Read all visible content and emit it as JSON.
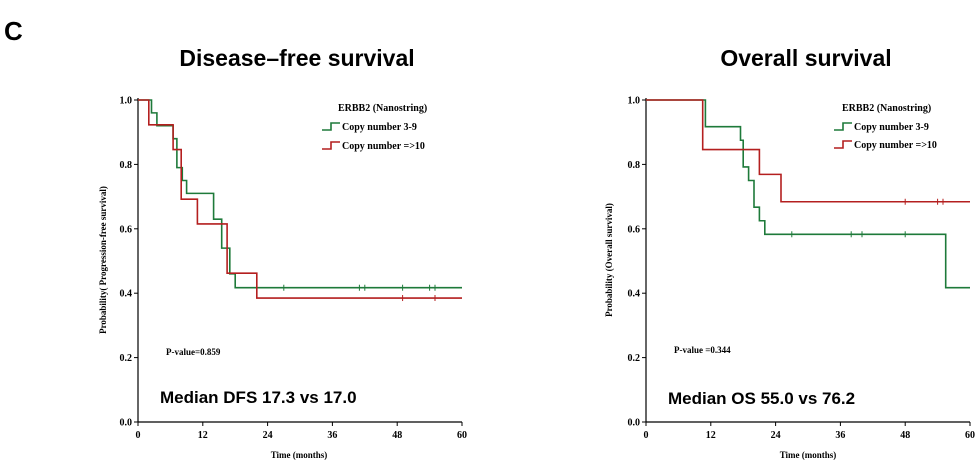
{
  "panel_label": "C",
  "colors": {
    "copy_3_9": "#1e7a3a",
    "copy_ge_10": "#b41f1f",
    "axis": "#000000"
  },
  "chart_data": [
    {
      "type": "line",
      "title": "Disease–free survival",
      "xlabel": "Time (months)",
      "ylabel": "Probability( Progression-free survival)",
      "xlim": [
        0,
        60
      ],
      "ylim": [
        0,
        1.0
      ],
      "xticks": [
        "0",
        "12",
        "24",
        "36",
        "48",
        "60"
      ],
      "yticks": [
        "0.0",
        "0.2",
        "0.4",
        "0.6",
        "0.8",
        "1.0"
      ],
      "legend": {
        "title": "ERBB2 (Nanostring)",
        "placement": "top-right"
      },
      "p_value": "P-value=0.859",
      "median": "Median DFS 17.3 vs 17.0",
      "series": [
        {
          "name": "Copy number  3-9",
          "color_key": "copy_3_9",
          "steps": [
            [
              0,
              1.0
            ],
            [
              2.5,
              0.96
            ],
            [
              3.5,
              0.92
            ],
            [
              6.5,
              0.88
            ],
            [
              7.2,
              0.79
            ],
            [
              8.2,
              0.75
            ],
            [
              9,
              0.71
            ],
            [
              14,
              0.63
            ],
            [
              15.5,
              0.54
            ],
            [
              17,
              0.46
            ],
            [
              18,
              0.417
            ],
            [
              60,
              0.417
            ]
          ],
          "censors": [
            [
              27,
              0.417
            ],
            [
              41,
              0.417
            ],
            [
              42,
              0.417
            ],
            [
              49,
              0.417
            ],
            [
              54,
              0.417
            ],
            [
              55,
              0.417
            ]
          ]
        },
        {
          "name": "Copy number =>10",
          "color_key": "copy_ge_10",
          "steps": [
            [
              0,
              1.0
            ],
            [
              2,
              0.923
            ],
            [
              6.5,
              0.846
            ],
            [
              8,
              0.692
            ],
            [
              11,
              0.615
            ],
            [
              14.5,
              0.615
            ],
            [
              16.5,
              0.462
            ],
            [
              22,
              0.385
            ],
            [
              60,
              0.385
            ]
          ],
          "censors": [
            [
              49,
              0.385
            ],
            [
              55,
              0.385
            ]
          ]
        }
      ]
    },
    {
      "type": "line",
      "title": "Overall survival",
      "xlabel": "Time (months)",
      "ylabel": "Probability (Overall survival)",
      "xlim": [
        0,
        60
      ],
      "ylim": [
        0,
        1.0
      ],
      "xticks": [
        "0",
        "12",
        "24",
        "36",
        "48",
        "60"
      ],
      "yticks": [
        "0.0",
        "0.2",
        "0.4",
        "0.6",
        "0.8",
        "1.0"
      ],
      "legend": {
        "title": "ERBB2 (Nanostring)",
        "placement": "top-right"
      },
      "p_value": "P-value =0.344",
      "median": "Median OS 55.0 vs 76.2",
      "series": [
        {
          "name": "Copy number 3-9",
          "color_key": "copy_3_9",
          "steps": [
            [
              0,
              1.0
            ],
            [
              11,
              0.917
            ],
            [
              17.5,
              0.875
            ],
            [
              18,
              0.792
            ],
            [
              19,
              0.75
            ],
            [
              20,
              0.667
            ],
            [
              21,
              0.625
            ],
            [
              22,
              0.583
            ],
            [
              55,
              0.583
            ],
            [
              55.5,
              0.417
            ],
            [
              60,
              0.417
            ]
          ],
          "censors": [
            [
              27,
              0.583
            ],
            [
              38,
              0.583
            ],
            [
              40,
              0.583
            ],
            [
              48,
              0.583
            ]
          ]
        },
        {
          "name": "Copy number =>10",
          "color_key": "copy_ge_10",
          "steps": [
            [
              0,
              1.0
            ],
            [
              10.5,
              0.846
            ],
            [
              21,
              0.769
            ],
            [
              25,
              0.684
            ],
            [
              60,
              0.684
            ]
          ],
          "censors": [
            [
              48,
              0.684
            ],
            [
              54,
              0.684
            ],
            [
              55,
              0.684
            ]
          ]
        }
      ]
    }
  ]
}
